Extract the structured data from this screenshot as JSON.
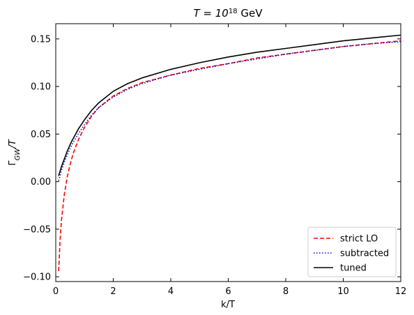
{
  "chart_data": {
    "type": "line",
    "title": "T = 10^18 GeV",
    "title_parts": {
      "prefix": "T = 10",
      "exponent": "18",
      "suffix": " GeV"
    },
    "xlabel": "k/T",
    "ylabel": "Γ_GW/T",
    "ylabel_parts": {
      "main": "Γ",
      "sub": "GW",
      "suffix": "/T"
    },
    "xlim": [
      0,
      12
    ],
    "ylim": [
      -0.105,
      0.166
    ],
    "xticks": [
      0,
      2,
      4,
      6,
      8,
      10,
      12
    ],
    "yticks": [
      -0.1,
      -0.05,
      0.0,
      0.05,
      0.1,
      0.15
    ],
    "xtick_labels": [
      "0",
      "2",
      "4",
      "6",
      "8",
      "10",
      "12"
    ],
    "ytick_labels": [
      "−0.10",
      "−0.05",
      "0.00",
      "0.05",
      "0.10",
      "0.15"
    ],
    "grid": false,
    "legend_position": "bottom-right",
    "series": [
      {
        "name": "strict LO",
        "color": "#ff0000",
        "style": "dashed",
        "x": [
          0.1,
          0.15,
          0.2,
          0.3,
          0.4,
          0.5,
          0.6,
          0.8,
          1.0,
          1.25,
          1.5,
          2.0,
          2.5,
          3.0,
          4.0,
          5.0,
          6.0,
          7.0,
          8.0,
          9.0,
          10.0,
          11.0,
          12.0
        ],
        "y": [
          -0.094,
          -0.062,
          -0.04,
          -0.013,
          0.005,
          0.018,
          0.029,
          0.045,
          0.057,
          0.069,
          0.078,
          0.09,
          0.098,
          0.104,
          0.112,
          0.119,
          0.124,
          0.13,
          0.134,
          0.138,
          0.142,
          0.145,
          0.148
        ]
      },
      {
        "name": "subtracted",
        "color": "#0000cc",
        "style": "dotted",
        "x": [
          0.1,
          0.15,
          0.2,
          0.3,
          0.4,
          0.5,
          0.6,
          0.8,
          1.0,
          1.25,
          1.5,
          2.0,
          2.5,
          3.0,
          4.0,
          5.0,
          6.0,
          7.0,
          8.0,
          9.0,
          10.0,
          11.0,
          12.0
        ],
        "y": [
          0.001,
          0.006,
          0.012,
          0.021,
          0.028,
          0.035,
          0.041,
          0.051,
          0.06,
          0.07,
          0.078,
          0.089,
          0.097,
          0.103,
          0.112,
          0.118,
          0.124,
          0.129,
          0.134,
          0.138,
          0.142,
          0.145,
          0.147
        ]
      },
      {
        "name": "tuned",
        "color": "#000000",
        "style": "solid",
        "x": [
          0.1,
          0.15,
          0.2,
          0.3,
          0.4,
          0.5,
          0.6,
          0.8,
          1.0,
          1.25,
          1.5,
          2.0,
          2.5,
          3.0,
          4.0,
          5.0,
          6.0,
          7.0,
          8.0,
          9.0,
          10.0,
          11.0,
          12.0
        ],
        "y": [
          0.006,
          0.011,
          0.016,
          0.024,
          0.032,
          0.039,
          0.045,
          0.056,
          0.065,
          0.075,
          0.083,
          0.095,
          0.103,
          0.109,
          0.118,
          0.125,
          0.131,
          0.136,
          0.14,
          0.144,
          0.148,
          0.151,
          0.154
        ]
      }
    ]
  }
}
